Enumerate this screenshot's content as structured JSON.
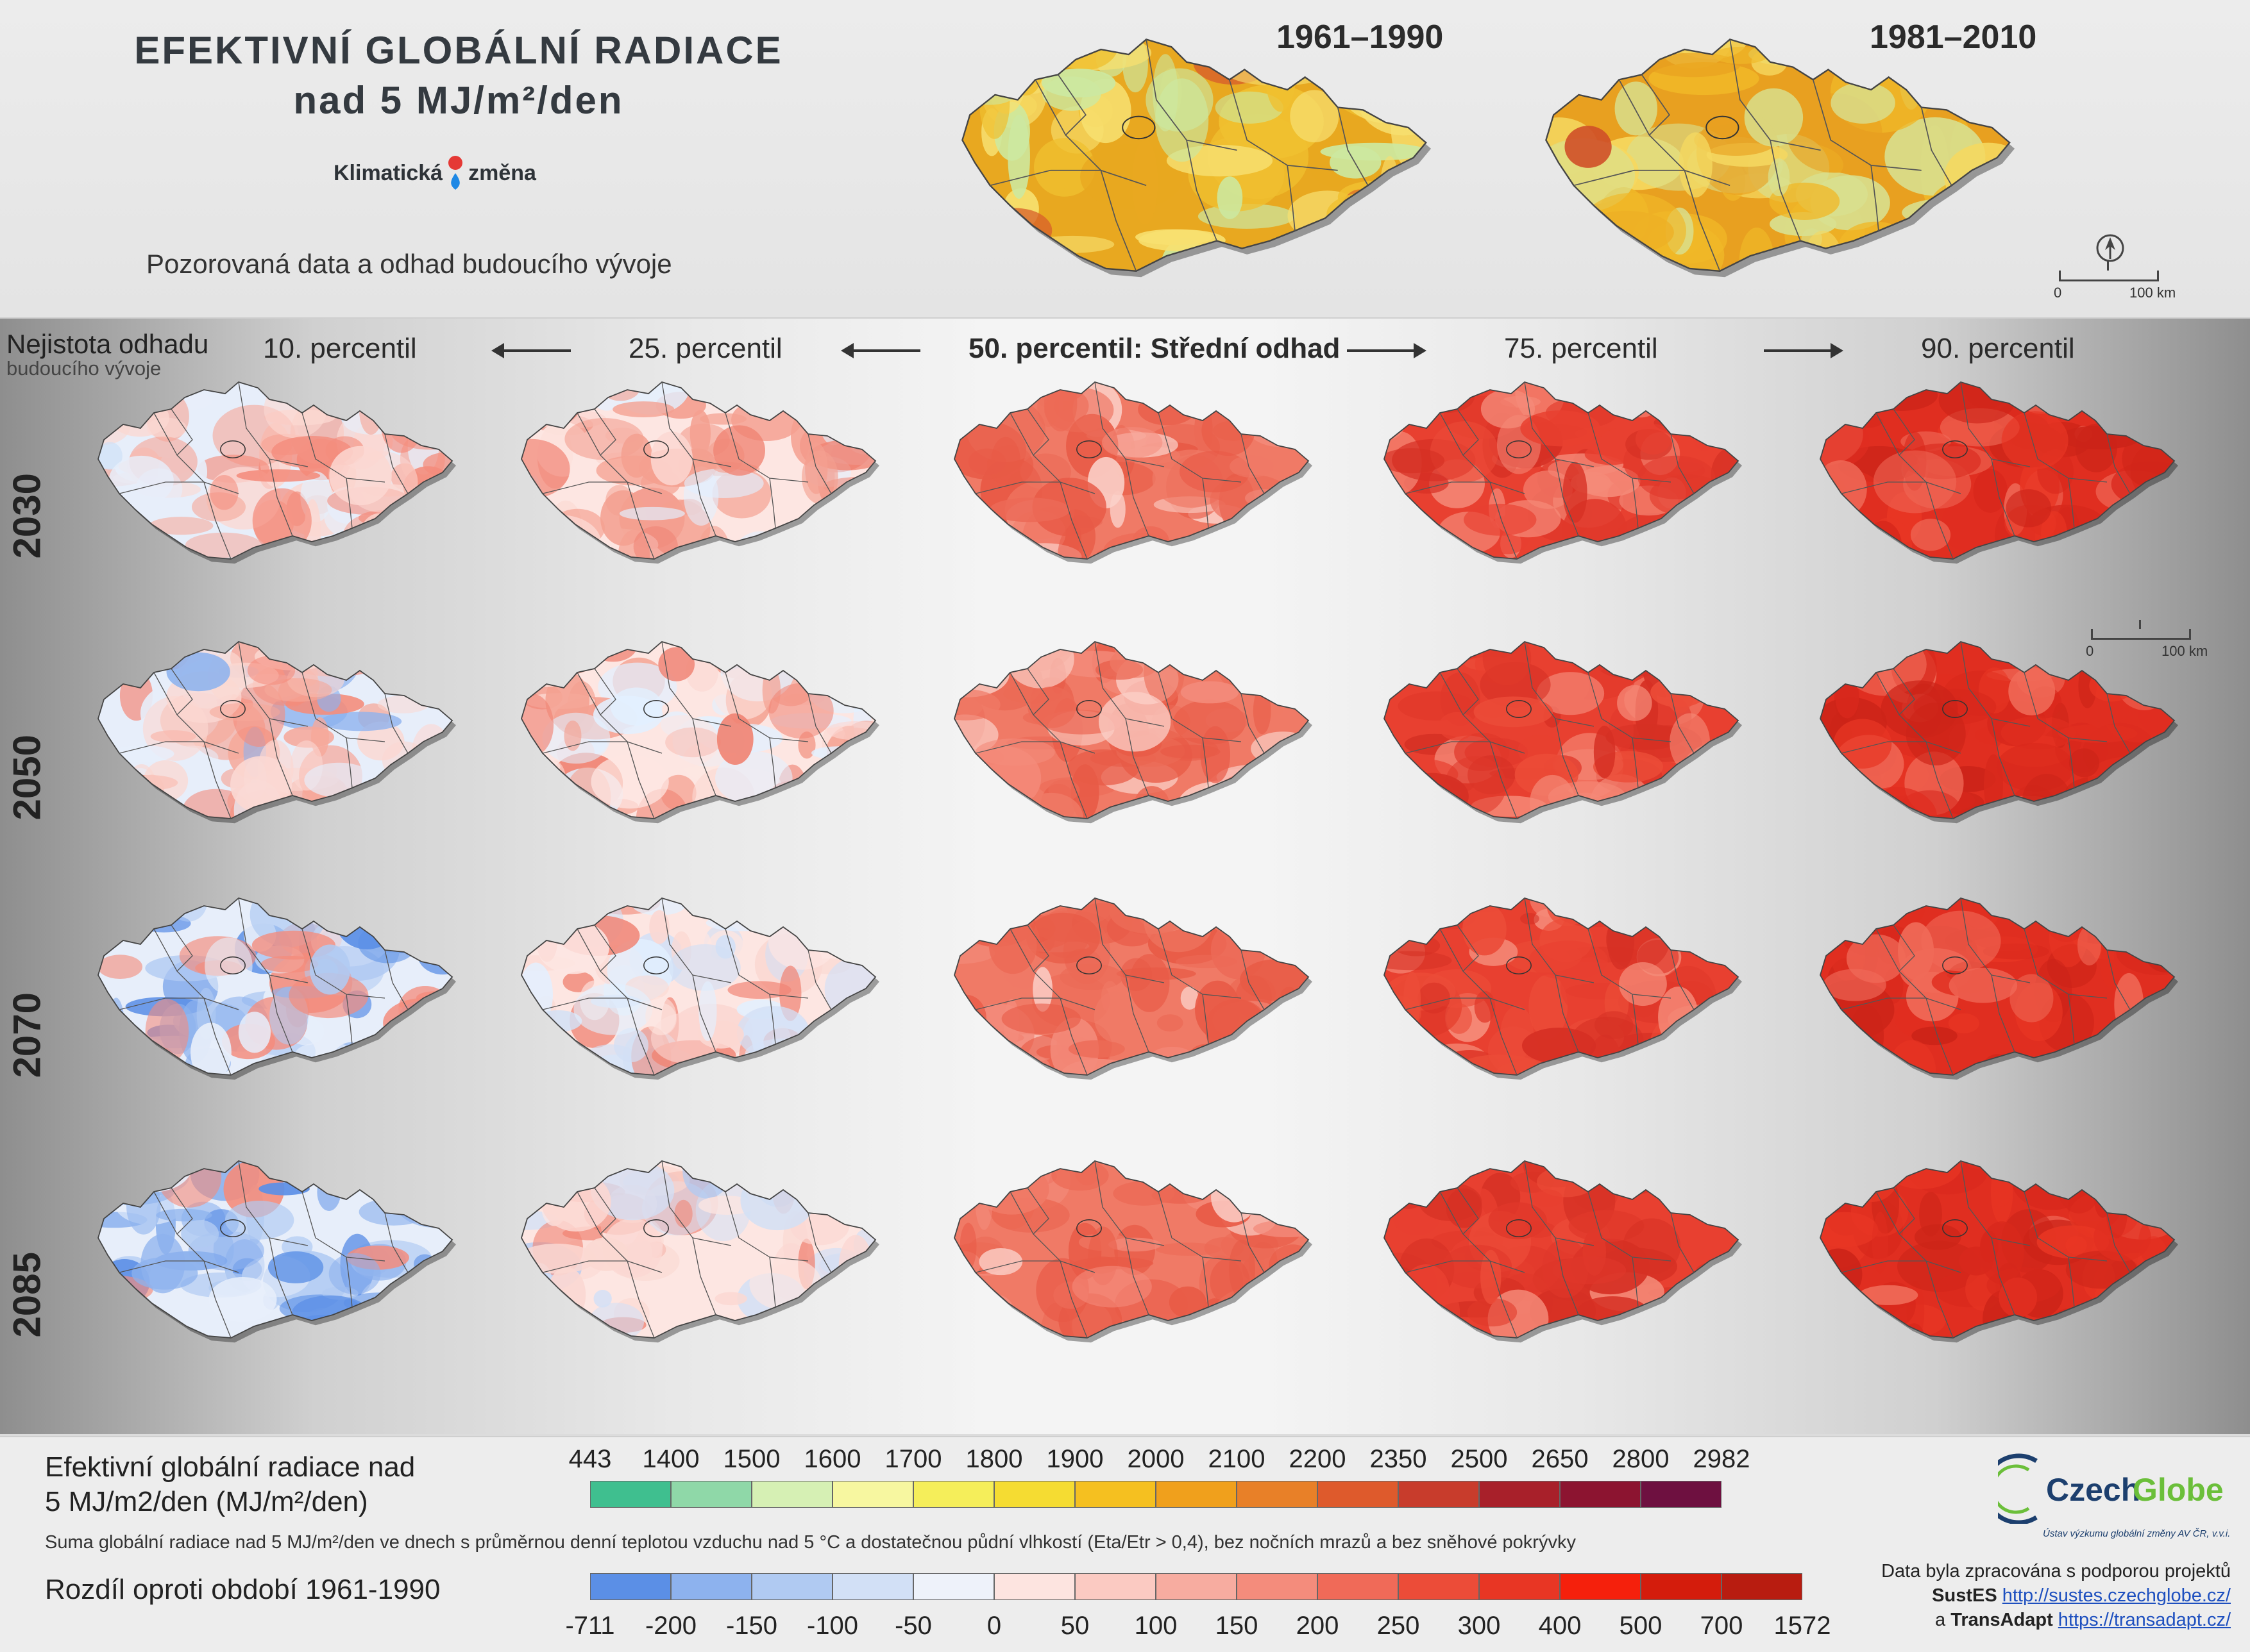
{
  "header": {
    "title_line1": "EFEKTIVNÍ GLOBÁLNÍ RADIACE",
    "title_line2": "nad 5 MJ/m²/den",
    "brand_left": "Klimatická",
    "brand_right": "změna",
    "subtitle": "Pozorovaná data a odhad budoucího vývoje",
    "periods": [
      "1961–1990",
      "1981–2010"
    ],
    "scalebar": {
      "start": "0",
      "end": "100 km"
    }
  },
  "grid": {
    "uncertainty_line1": "Nejistota odhadu",
    "uncertainty_line2": "budoucího vývoje",
    "percentiles": [
      "10. percentil",
      "25. percentil",
      "50. percentil: Střední odhad",
      "75. percentil",
      "90. percentil"
    ],
    "years": [
      "2030",
      "2050",
      "2070",
      "2085"
    ],
    "scalebar": {
      "start": "0",
      "end": "100 km"
    }
  },
  "legend": {
    "absolute_title_line1": "Efektivní globální radiace nad",
    "absolute_title_line2": "5 MJ/m2/den (MJ/m²/den)",
    "absolute_ticks": [
      "443",
      "1400",
      "1500",
      "1600",
      "1700",
      "1800",
      "1900",
      "2000",
      "2100",
      "2200",
      "2350",
      "2500",
      "2650",
      "2800",
      "2982"
    ],
    "absolute_colors": [
      "#3fbf8f",
      "#8fd8a8",
      "#d6f0b4",
      "#f7f7a0",
      "#f5ee5a",
      "#f5dc32",
      "#f5c020",
      "#f0a01c",
      "#e88028",
      "#de5a2c",
      "#c83c2c",
      "#a8202a",
      "#8c1430",
      "#6e1040"
    ],
    "note": "Suma globální radiace nad 5 MJ/m²/den ve dnech s průměrnou denní teplotou vzduchu nad 5 °C a dostatečnou půdní vlhkostí (Eta/Etr > 0,4), bez nočních mrazů a bez sněhové pokrývky",
    "difference_title": "Rozdíl oproti období 1961-1990",
    "difference_ticks": [
      "-711",
      "-200",
      "-150",
      "-100",
      "-50",
      "0",
      "50",
      "100",
      "150",
      "200",
      "250",
      "300",
      "400",
      "500",
      "700",
      "1572"
    ],
    "difference_colors": [
      "#5b8fe6",
      "#8db2ee",
      "#b0caf2",
      "#d2e0f6",
      "#eef2fa",
      "#fde4e0",
      "#fbcac2",
      "#f7aca0",
      "#f48c7c",
      "#f06a58",
      "#ec4c38",
      "#e83624",
      "#f5200c",
      "#d41c0c",
      "#b81c10"
    ]
  },
  "logo": {
    "name_left": "Czech",
    "name_right": "Globe",
    "subtitle": "Ústav výzkumu globální změny AV ČR, v.v.i."
  },
  "credits": {
    "line1": "Data byla zpracována s podporou projektů",
    "project1": "SustES",
    "url1": "http://sustes.czechglobe.cz/",
    "connector": "a",
    "project2": "TransAdapt",
    "url2": "https://transadapt.cz/"
  },
  "colors": {
    "observed_1961_1990": [
      "#f0c030",
      "#e8a820",
      "#f7e070",
      "#cce8a0",
      "#d8602a"
    ],
    "observed_1981_2010": [
      "#f0b828",
      "#e8a020",
      "#f5d860",
      "#d8e090",
      "#d05028"
    ],
    "diff_scale_low_high": [
      "#5b8fe6",
      "#b0caf2",
      "#fde4e0",
      "#f48c7c",
      "#ec4c38",
      "#d41c0c"
    ]
  }
}
